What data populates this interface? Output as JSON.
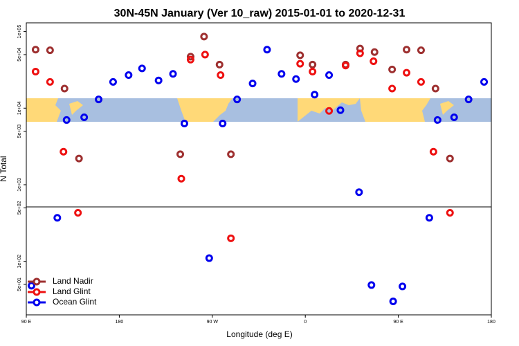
{
  "chart_data": {
    "type": "scatter",
    "title": "30N-45N January (Ver 10_raw)   2015-01-01 to 2020-12-31",
    "xlabel": "Longitude (deg E)",
    "ylabel": "N Total",
    "log_y": true,
    "legend": "bottom-left",
    "xlim": [
      -270,
      180
    ],
    "xticks": [
      {
        "value": -270,
        "label": "90 E"
      },
      {
        "value": -180,
        "label": "180"
      },
      {
        "value": -90,
        "label": "90 W"
      },
      0,
      {
        "value": 90,
        "label": "90 E"
      },
      180
    ],
    "ylim": [
      20,
      130000
    ],
    "yticks": [
      {
        "value": 100000,
        "label": "1e+05"
      },
      {
        "value": 50000,
        "label": "5e+04"
      },
      {
        "value": 10000,
        "label": "1e+04"
      },
      {
        "value": 5000,
        "label": "5e+03"
      },
      {
        "value": 1000,
        "label": "1e+03"
      },
      {
        "value": 500,
        "label": "5e+02"
      },
      {
        "value": 100,
        "label": "1e+02"
      },
      {
        "value": 50,
        "label": "5e+01"
      }
    ],
    "series": [
      {
        "name": "Land Nadir",
        "color": "#9e3030",
        "x": [
          -261,
          -247,
          -233,
          -219,
          -121,
          -111,
          -98,
          -83,
          -72,
          -5,
          7,
          39,
          53,
          67,
          84,
          98,
          112,
          126,
          140
        ],
        "values": [
          58000,
          57000,
          18000,
          2200,
          2500,
          47000,
          86000,
          37000,
          2500,
          49000,
          37000,
          37000,
          60000,
          54000,
          32000,
          58000,
          57000,
          18000,
          2200
        ]
      },
      {
        "name": "Land Glint",
        "color": "#ee1111",
        "x": [
          -261,
          -247,
          -234,
          -220,
          -120,
          -111,
          -97,
          -82,
          -72,
          -5,
          7,
          23,
          39,
          53,
          66,
          84,
          98,
          112,
          124,
          140
        ],
        "values": [
          30000,
          22000,
          2700,
          430,
          1200,
          43000,
          50000,
          27000,
          200,
          38000,
          30000,
          9200,
          36000,
          52000,
          41000,
          18000,
          29000,
          22000,
          2700,
          430
        ]
      },
      {
        "name": "Ocean Glint",
        "color": "#0000ee",
        "x": [
          -265,
          -240,
          -231,
          -214,
          -200,
          -186,
          -171,
          -158,
          -142,
          -128,
          -117,
          -93,
          -80,
          -66,
          -51,
          -37,
          -23,
          -9,
          9,
          23,
          34,
          52,
          64,
          85,
          94,
          120,
          128,
          144,
          158,
          173
        ],
        "values": [
          48,
          370,
          7000,
          7600,
          13000,
          22000,
          27000,
          33000,
          23000,
          28000,
          6300,
          110,
          6300,
          13000,
          21000,
          58000,
          28000,
          24000,
          15000,
          27000,
          9400,
          800,
          49,
          30,
          47,
          370,
          7000,
          7600,
          13000,
          22000
        ]
      }
    ]
  }
}
